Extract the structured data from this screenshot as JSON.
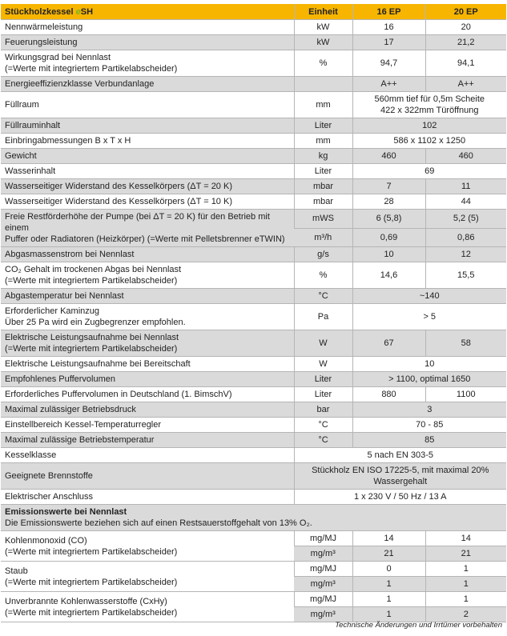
{
  "header": {
    "title": "Stückholzkessel ",
    "title_brand_e": "e",
    "title_brand": "SH",
    "unit": "Einheit",
    "col1": "16 EP",
    "col2": "20 EP"
  },
  "colors": {
    "header": "#f7b500",
    "shade": "#dadada",
    "brand_e": "#7ab51d"
  },
  "rows": [
    {
      "label": [
        "Nennwärmeleistung"
      ],
      "shade": false,
      "sub": [
        {
          "unit": "kW",
          "cells": [
            {
              "v": "16"
            },
            {
              "v": "20"
            }
          ]
        }
      ]
    },
    {
      "label": [
        "Feuerungsleistung"
      ],
      "shade": true,
      "sub": [
        {
          "unit": "kW",
          "cells": [
            {
              "v": "17"
            },
            {
              "v": "21,2"
            }
          ]
        }
      ]
    },
    {
      "label": [
        "Wirkungsgrad bei Nennlast",
        "(=Werte mit integriertem Partikelabscheider)"
      ],
      "shade": false,
      "sub": [
        {
          "unit": "%",
          "cells": [
            {
              "v": "94,7"
            },
            {
              "v": "94,1"
            }
          ]
        }
      ]
    },
    {
      "label": [
        "Energieeffizienzklasse Verbundanlage"
      ],
      "shade": true,
      "sub": [
        {
          "unit": "",
          "cells": [
            {
              "v": "A++"
            },
            {
              "v": "A++"
            }
          ]
        }
      ]
    },
    {
      "label": [
        "Füllraum"
      ],
      "shade": false,
      "sub": [
        {
          "unit": "mm",
          "cells": [
            {
              "v": "560mm tief für 0,5m Scheite\n422 x 322mm Türöffnung",
              "span": 2
            }
          ]
        }
      ]
    },
    {
      "label": [
        "Füllrauminhalt"
      ],
      "shade": true,
      "sub": [
        {
          "unit": "Liter",
          "cells": [
            {
              "v": "102",
              "span": 2
            }
          ]
        }
      ]
    },
    {
      "label": [
        "Einbringabmessungen B x T x H"
      ],
      "shade": false,
      "sub": [
        {
          "unit": "mm",
          "cells": [
            {
              "v": "586 x 1102 x 1250",
              "span": 2
            }
          ]
        }
      ]
    },
    {
      "label": [
        "Gewicht"
      ],
      "shade": true,
      "sub": [
        {
          "unit": "kg",
          "cells": [
            {
              "v": "460"
            },
            {
              "v": "460"
            }
          ]
        }
      ]
    },
    {
      "label": [
        "Wasserinhalt"
      ],
      "shade": false,
      "sub": [
        {
          "unit": "Liter",
          "cells": [
            {
              "v": "69",
              "span": 2
            }
          ]
        }
      ]
    },
    {
      "label": [
        "Wasserseitiger Widerstand des Kesselkörpers (ΔT = 20 K)"
      ],
      "shade": true,
      "sub": [
        {
          "unit": "mbar",
          "cells": [
            {
              "v": "7"
            },
            {
              "v": "11"
            }
          ]
        }
      ]
    },
    {
      "label": [
        "Wasserseitiger Widerstand des Kesselkörpers (ΔT = 10 K)"
      ],
      "shade": false,
      "sub": [
        {
          "unit": "mbar",
          "cells": [
            {
              "v": "28"
            },
            {
              "v": "44"
            }
          ]
        }
      ]
    },
    {
      "label": [
        "Freie Restförderhöhe der Pumpe (bei ΔT = 20 K) für den Betrieb mit einem",
        "Puffer oder Radiatoren (Heizkörper) (=Werte mit Pelletsbrenner eTWIN)"
      ],
      "shade": true,
      "sub": [
        {
          "unit": "mWS",
          "cells": [
            {
              "v": "6 (5,8)"
            },
            {
              "v": "5,2 (5)"
            }
          ]
        },
        {
          "unit": "m³/h",
          "cells": [
            {
              "v": "0,69"
            },
            {
              "v": "0,86"
            }
          ]
        }
      ]
    },
    {
      "label": [
        "Abgasmassenstrom bei Nennlast"
      ],
      "shade": true,
      "sub": [
        {
          "unit": "g/s",
          "cells": [
            {
              "v": "10"
            },
            {
              "v": "12"
            }
          ]
        }
      ]
    },
    {
      "label": [
        "CO₂ Gehalt im trockenen Abgas bei Nennlast",
        "(=Werte mit integriertem Partikelabscheider)"
      ],
      "shade": false,
      "sub": [
        {
          "unit": "%",
          "cells": [
            {
              "v": "14,6"
            },
            {
              "v": "15,5"
            }
          ]
        }
      ]
    },
    {
      "label": [
        "Abgastemperatur bei Nennlast"
      ],
      "shade": true,
      "sub": [
        {
          "unit": "°C",
          "cells": [
            {
              "v": "~140",
              "span": 2
            }
          ]
        }
      ]
    },
    {
      "label": [
        "Erforderlicher Kaminzug",
        "Über 25 Pa wird ein Zugbegrenzer empfohlen."
      ],
      "shade": false,
      "sub": [
        {
          "unit": "Pa",
          "cells": [
            {
              "v": "> 5",
              "span": 2
            }
          ]
        }
      ]
    },
    {
      "label": [
        "Elektrische Leistungsaufnahme bei Nennlast",
        "(=Werte mit integriertem Partikelabscheider)"
      ],
      "shade": true,
      "sub": [
        {
          "unit": "W",
          "cells": [
            {
              "v": "67"
            },
            {
              "v": "58"
            }
          ]
        }
      ]
    },
    {
      "label": [
        "Elektrische Leistungsaufnahme bei Bereitschaft"
      ],
      "shade": false,
      "sub": [
        {
          "unit": "W",
          "cells": [
            {
              "v": "10",
              "span": 2
            }
          ]
        }
      ]
    },
    {
      "label": [
        "Empfohlenes Puffervolumen"
      ],
      "shade": true,
      "sub": [
        {
          "unit": "Liter",
          "cells": [
            {
              "v": "> 1100, optimal 1650",
              "span": 2
            }
          ]
        }
      ]
    },
    {
      "label": [
        "Erforderliches Puffervolumen in Deutschland (1. BimschV)"
      ],
      "shade": false,
      "sub": [
        {
          "unit": "Liter",
          "cells": [
            {
              "v": "880"
            },
            {
              "v": "1100"
            }
          ]
        }
      ]
    },
    {
      "label": [
        "Maximal zulässiger Betriebsdruck"
      ],
      "shade": true,
      "sub": [
        {
          "unit": "bar",
          "cells": [
            {
              "v": "3",
              "span": 2
            }
          ]
        }
      ]
    },
    {
      "label": [
        "Einstellbereich Kessel-Temperaturregler"
      ],
      "shade": false,
      "sub": [
        {
          "unit": "°C",
          "cells": [
            {
              "v": "70 - 85",
              "span": 2
            }
          ]
        }
      ]
    },
    {
      "label": [
        "Maximal zulässige Betriebstemperatur"
      ],
      "shade": true,
      "sub": [
        {
          "unit": "°C",
          "cells": [
            {
              "v": "85",
              "span": 2
            }
          ]
        }
      ]
    },
    {
      "label": [
        "Kesselklasse"
      ],
      "shade": false,
      "sub": [
        {
          "cells": [
            {
              "v": "5 nach EN 303-5",
              "span": 3
            }
          ]
        }
      ]
    },
    {
      "label": [
        "Geeignete Brennstoffe"
      ],
      "shade": true,
      "sub": [
        {
          "cells": [
            {
              "v": "Stückholz EN ISO 17225-5, mit maximal 20%\nWassergehalt",
              "span": 3
            }
          ]
        }
      ]
    },
    {
      "label": [
        "Elektrischer Anschluss"
      ],
      "shade": false,
      "sub": [
        {
          "cells": [
            {
              "v": "1 x 230 V / 50 Hz / 13 A",
              "span": 3
            }
          ]
        }
      ]
    },
    {
      "section": true,
      "label": [
        "Emissionswerte bei Nennlast",
        "Die Emissionswerte beziehen sich auf einen Restsauerstoffgehalt von 13% O₂."
      ],
      "shade": true
    },
    {
      "label": [
        "Kohlenmonoxid (CO)",
        "(=Werte mit integriertem Partikelabscheider)"
      ],
      "shade": false,
      "sub": [
        {
          "unit": "mg/MJ",
          "cells": [
            {
              "v": "14"
            },
            {
              "v": "14"
            }
          ]
        },
        {
          "unit": "mg/m³",
          "shade": true,
          "cells": [
            {
              "v": "21"
            },
            {
              "v": "21"
            }
          ]
        }
      ]
    },
    {
      "label": [
        "Staub",
        "(=Werte mit integriertem Partikelabscheider)"
      ],
      "shade": false,
      "sub": [
        {
          "unit": "mg/MJ",
          "cells": [
            {
              "v": "0"
            },
            {
              "v": "1"
            }
          ]
        },
        {
          "unit": "mg/m³",
          "shade": true,
          "cells": [
            {
              "v": "1"
            },
            {
              "v": "1"
            }
          ]
        }
      ]
    },
    {
      "label": [
        "Unverbrannte Kohlenwasserstoffe (CxHy)",
        "(=Werte mit integriertem Partikelabscheider)"
      ],
      "shade": false,
      "sub": [
        {
          "unit": "mg/MJ",
          "cells": [
            {
              "v": "1"
            },
            {
              "v": "1"
            }
          ]
        },
        {
          "unit": "mg/m³",
          "shade": true,
          "cells": [
            {
              "v": "1"
            },
            {
              "v": "2"
            }
          ]
        }
      ]
    }
  ],
  "footer": "Technische Änderungen und Irrtümer vorbehalten"
}
